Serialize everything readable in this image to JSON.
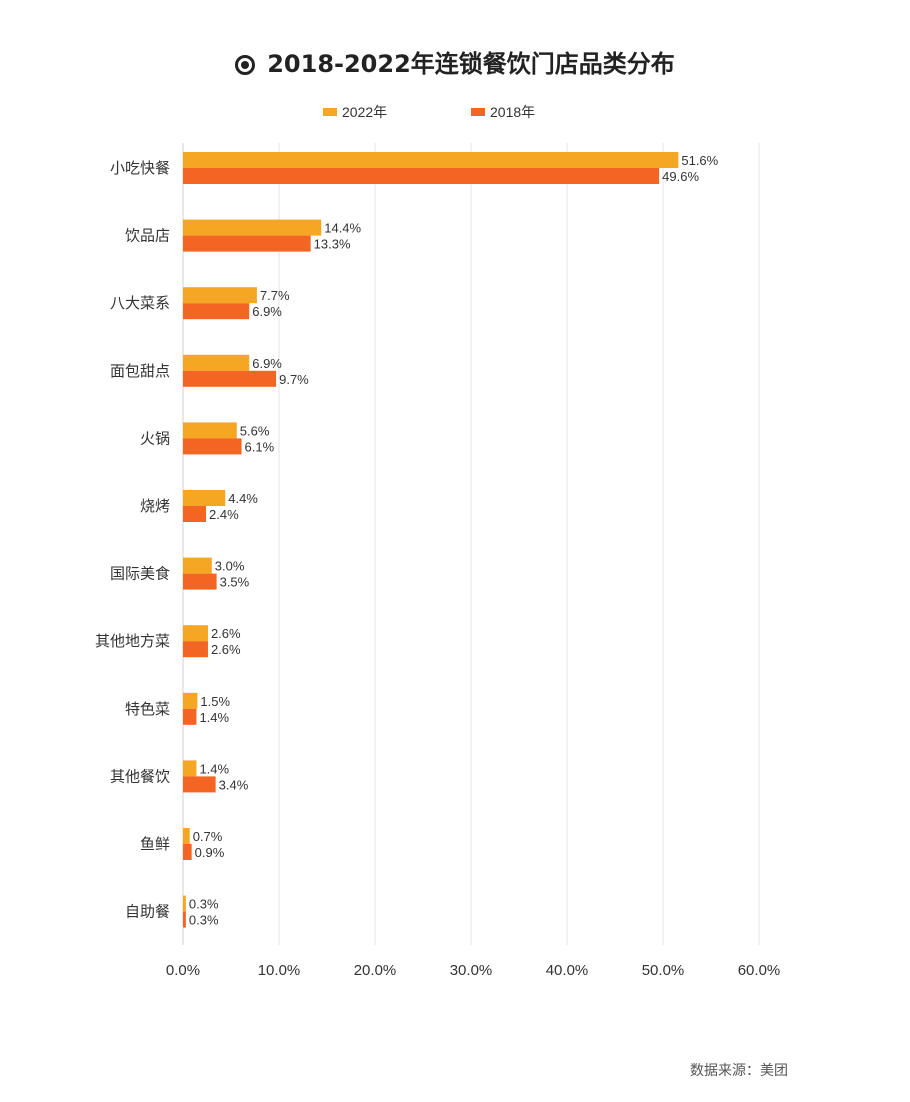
{
  "chart_data": {
    "type": "bar",
    "orientation": "horizontal",
    "title": "2018-2022年连锁餐饮门店品类分布",
    "categories": [
      "小吃快餐",
      "饮品店",
      "八大菜系",
      "面包甜点",
      "火锅",
      "烧烤",
      "国际美食",
      "其他地方菜",
      "特色菜",
      "其他餐饮",
      "鱼鲜",
      "自助餐"
    ],
    "series": [
      {
        "name": "2022年",
        "color": "#F5A623",
        "values": [
          51.6,
          14.4,
          7.7,
          6.9,
          5.6,
          4.4,
          3.0,
          2.6,
          1.5,
          1.4,
          0.7,
          0.3
        ]
      },
      {
        "name": "2018年",
        "color": "#F26522",
        "values": [
          49.6,
          13.3,
          6.9,
          9.7,
          6.1,
          2.4,
          3.5,
          2.6,
          1.4,
          3.4,
          0.9,
          0.3
        ]
      }
    ],
    "data_labels": [
      [
        "51.6%",
        "14.4%",
        "7.7%",
        "6.9%",
        "5.6%",
        "4.4%",
        "3.0%",
        "2.6%",
        "1.5%",
        "1.4%",
        "0.7%",
        "0.3%"
      ],
      [
        "49.6%",
        "13.3%",
        "6.9%",
        "9.7%",
        "6.1%",
        "2.4%",
        "3.5%",
        "2.6%",
        "1.4%",
        "3.4%",
        "0.9%",
        "0.3%"
      ]
    ],
    "x_ticks": [
      "0.0%",
      "10.0%",
      "20.0%",
      "30.0%",
      "40.0%",
      "50.0%",
      "60.0%"
    ],
    "xlim": [
      0,
      60
    ],
    "xlabel": "",
    "ylabel": "",
    "grid": true,
    "legend_position": "top"
  },
  "legend": {
    "items": [
      {
        "label": "2022年",
        "color": "#F5A623"
      },
      {
        "label": "2018年",
        "color": "#F26522"
      }
    ]
  },
  "header": {
    "title": "2018-2022年连锁餐饮门店品类分布",
    "icon": "target-icon"
  },
  "footer": {
    "source": "数据来源：美团"
  }
}
